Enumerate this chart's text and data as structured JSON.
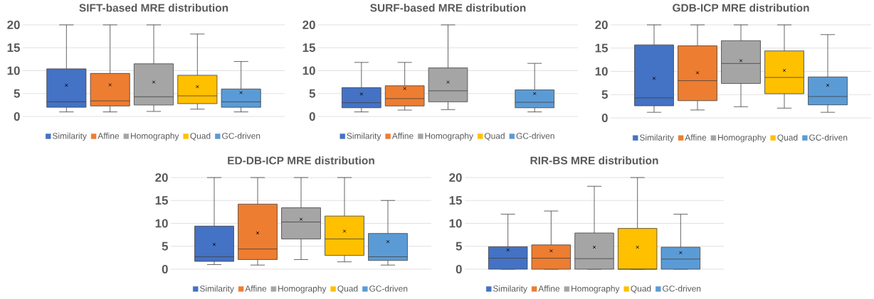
{
  "chart_data": [
    {
      "type": "box",
      "title": "SIFT-based MRE distribution",
      "categories": [
        null
      ],
      "ylim": [
        0,
        20
      ],
      "yticks": [
        0,
        5,
        10,
        15,
        20
      ],
      "grid": "y",
      "legend": "bottom",
      "series": [
        {
          "name": "Similarity",
          "color": "#4472c4",
          "boxes": [
            {
              "low": 1.0,
              "q1": 2.0,
              "median": 3.2,
              "q3": 10.4,
              "high": 20,
              "mean": 6.8
            }
          ]
        },
        {
          "name": "Affine",
          "color": "#ed7d31",
          "boxes": [
            {
              "low": 1.0,
              "q1": 2.3,
              "median": 3.4,
              "q3": 9.4,
              "high": 20,
              "mean": 6.9
            }
          ]
        },
        {
          "name": "Homography",
          "color": "#a5a5a5",
          "boxes": [
            {
              "low": 1.1,
              "q1": 2.5,
              "median": 4.3,
              "q3": 11.5,
              "high": 20,
              "mean": 7.5
            }
          ]
        },
        {
          "name": "Quad",
          "color": "#ffc000",
          "boxes": [
            {
              "low": 1.6,
              "q1": 2.8,
              "median": 4.5,
              "q3": 9.0,
              "high": 18.0,
              "mean": 6.5
            }
          ]
        },
        {
          "name": "GC-driven",
          "color": "#5b9bd5",
          "boxes": [
            {
              "low": 1.0,
              "q1": 2.0,
              "median": 3.2,
              "q3": 6.0,
              "high": 12.0,
              "mean": 5.2
            }
          ]
        }
      ]
    },
    {
      "type": "box",
      "title": "SURF-based MRE distribution",
      "categories": [
        null
      ],
      "ylim": [
        0,
        20
      ],
      "yticks": [
        0,
        5,
        10,
        15,
        20
      ],
      "grid": "y",
      "legend": "bottom",
      "series": [
        {
          "name": "Similarity",
          "color": "#4472c4",
          "boxes": [
            {
              "low": 1.0,
              "q1": 1.9,
              "median": 3.0,
              "q3": 6.3,
              "high": 11.8,
              "mean": 4.9
            }
          ]
        },
        {
          "name": "Affine",
          "color": "#ed7d31",
          "boxes": [
            {
              "low": 1.4,
              "q1": 2.3,
              "median": 3.9,
              "q3": 6.7,
              "high": 11.8,
              "mean": 6.1
            }
          ]
        },
        {
          "name": "Homography",
          "color": "#a5a5a5",
          "boxes": [
            {
              "low": 1.5,
              "q1": 3.2,
              "median": 5.6,
              "q3": 10.6,
              "high": 20,
              "mean": 7.5
            }
          ]
        },
        {
          "name": "Quad",
          "color": "#ffc000",
          "boxes": [
            null
          ]
        },
        {
          "name": "GC-driven",
          "color": "#5b9bd5",
          "boxes": [
            {
              "low": 1.0,
              "q1": 1.9,
              "median": 3.1,
              "q3": 5.8,
              "high": 11.6,
              "mean": 5.0
            }
          ]
        }
      ]
    },
    {
      "type": "box",
      "title": "GDB-ICP MRE distribution",
      "categories": [
        null
      ],
      "ylim": [
        0,
        20
      ],
      "yticks": [
        0,
        5,
        10,
        15,
        20
      ],
      "grid": "y",
      "legend": "bottom",
      "series": [
        {
          "name": "Similarity",
          "color": "#4472c4",
          "boxes": [
            {
              "low": 1.2,
              "q1": 2.6,
              "median": 4.3,
              "q3": 15.7,
              "high": 20,
              "mean": 8.5
            }
          ]
        },
        {
          "name": "Affine",
          "color": "#ed7d31",
          "boxes": [
            {
              "low": 1.7,
              "q1": 3.7,
              "median": 8.0,
              "q3": 15.5,
              "high": 20,
              "mean": 9.7
            }
          ]
        },
        {
          "name": "Homography",
          "color": "#a5a5a5",
          "boxes": [
            {
              "low": 2.4,
              "q1": 7.4,
              "median": 11.7,
              "q3": 16.6,
              "high": 20,
              "mean": 12.3
            }
          ]
        },
        {
          "name": "Quad",
          "color": "#ffc000",
          "boxes": [
            {
              "low": 2.1,
              "q1": 5.2,
              "median": 8.7,
              "q3": 14.4,
              "high": 20,
              "mean": 10.2
            }
          ]
        },
        {
          "name": "GC-driven",
          "color": "#5b9bd5",
          "boxes": [
            {
              "low": 1.2,
              "q1": 2.8,
              "median": 4.6,
              "q3": 8.8,
              "high": 17.9,
              "mean": 7.0
            }
          ]
        }
      ]
    },
    {
      "type": "box",
      "title": "ED-DB-ICP MRE distribution",
      "categories": [
        null
      ],
      "ylim": [
        0,
        20
      ],
      "yticks": [
        0,
        5,
        10,
        15,
        20
      ],
      "grid": "y",
      "legend": "bottom",
      "series": [
        {
          "name": "Similarity",
          "color": "#4472c4",
          "boxes": [
            {
              "low": 1.0,
              "q1": 1.7,
              "median": 2.7,
              "q3": 9.4,
              "high": 20,
              "mean": 5.4
            }
          ]
        },
        {
          "name": "Affine",
          "color": "#ed7d31",
          "boxes": [
            {
              "low": 0.9,
              "q1": 2.1,
              "median": 4.4,
              "q3": 14.2,
              "high": 20,
              "mean": 7.9
            }
          ]
        },
        {
          "name": "Homography",
          "color": "#a5a5a5",
          "boxes": [
            {
              "low": 2.1,
              "q1": 6.6,
              "median": 10.3,
              "q3": 13.4,
              "high": 20,
              "mean": 10.9
            }
          ]
        },
        {
          "name": "Quad",
          "color": "#ffc000",
          "boxes": [
            {
              "low": 1.6,
              "q1": 3.0,
              "median": 6.6,
              "q3": 11.6,
              "high": 20,
              "mean": 8.3
            }
          ]
        },
        {
          "name": "GC-driven",
          "color": "#5b9bd5",
          "boxes": [
            {
              "low": 0.9,
              "q1": 1.9,
              "median": 2.7,
              "q3": 7.8,
              "high": 15.0,
              "mean": 6.0
            }
          ]
        }
      ]
    },
    {
      "type": "box",
      "title": "RIR-BS MRE distribution",
      "categories": [
        null
      ],
      "ylim": [
        0,
        20
      ],
      "yticks": [
        0,
        5,
        10,
        15,
        20
      ],
      "grid": "y",
      "legend": "bottom",
      "series": [
        {
          "name": "Similarity",
          "color": "#4472c4",
          "boxes": [
            {
              "low": 0,
              "q1": 0,
              "median": 2.4,
              "q3": 4.9,
              "high": 12.0,
              "mean": 4.2
            }
          ]
        },
        {
          "name": "Affine",
          "color": "#ed7d31",
          "boxes": [
            {
              "low": 0,
              "q1": 0,
              "median": 2.4,
              "q3": 5.3,
              "high": 12.7,
              "mean": 4.0
            }
          ]
        },
        {
          "name": "Homography",
          "color": "#a5a5a5",
          "boxes": [
            {
              "low": 0,
              "q1": 0,
              "median": 2.3,
              "q3": 7.9,
              "high": 18.1,
              "mean": 4.8
            }
          ]
        },
        {
          "name": "Quad",
          "color": "#ffc000",
          "boxes": [
            {
              "low": 0,
              "q1": 0,
              "median": 0,
              "q3": 8.9,
              "high": 20,
              "mean": 4.8
            }
          ]
        },
        {
          "name": "GC-driven",
          "color": "#5b9bd5",
          "boxes": [
            {
              "low": 0,
              "q1": 0,
              "median": 2.2,
              "q3": 4.8,
              "high": 12.0,
              "mean": 3.6
            }
          ]
        }
      ]
    }
  ]
}
